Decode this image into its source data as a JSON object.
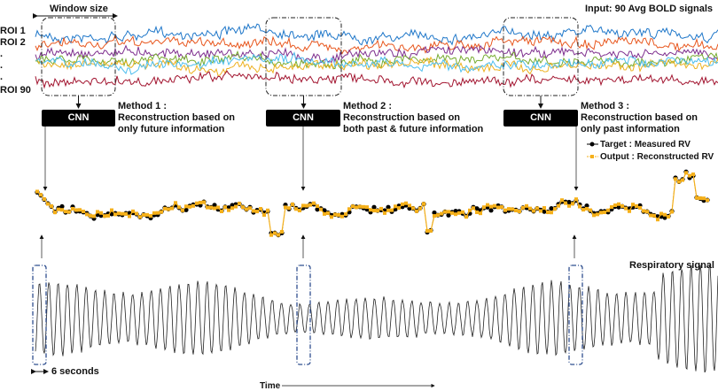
{
  "header": {
    "window_size": "Window size",
    "input_label": "Input: 90 Avg BOLD signals"
  },
  "roi_labels": [
    "ROI 1",
    "ROI 2",
    ".",
    ".",
    ".",
    "ROI 90"
  ],
  "methods": [
    {
      "cnn": "CNN",
      "title": "Method 1 :",
      "line1": "Reconstruction based on",
      "line2": "only future information"
    },
    {
      "cnn": "CNN",
      "title": "Method 2 :",
      "line1": "Reconstruction based on",
      "line2": "both past & future information"
    },
    {
      "cnn": "CNN",
      "title": "Method 3 :",
      "line1": "Reconstruction based on",
      "line2": "only past information"
    }
  ],
  "legend": [
    {
      "label": "Target : Measured RV",
      "color": "#000000"
    },
    {
      "label": "Output : Reconstructed RV",
      "color": "#f5b01a"
    }
  ],
  "respiratory_label": "Respiratory signal",
  "six_seconds": "6 seconds",
  "time_label": "Time",
  "colors": {
    "roi": [
      "#1f77c9",
      "#e8571e",
      "#7e2f8e",
      "#77ac30",
      "#edb120",
      "#4dbeee",
      "#a2142f"
    ],
    "window_box": "#2f4f8f"
  }
}
